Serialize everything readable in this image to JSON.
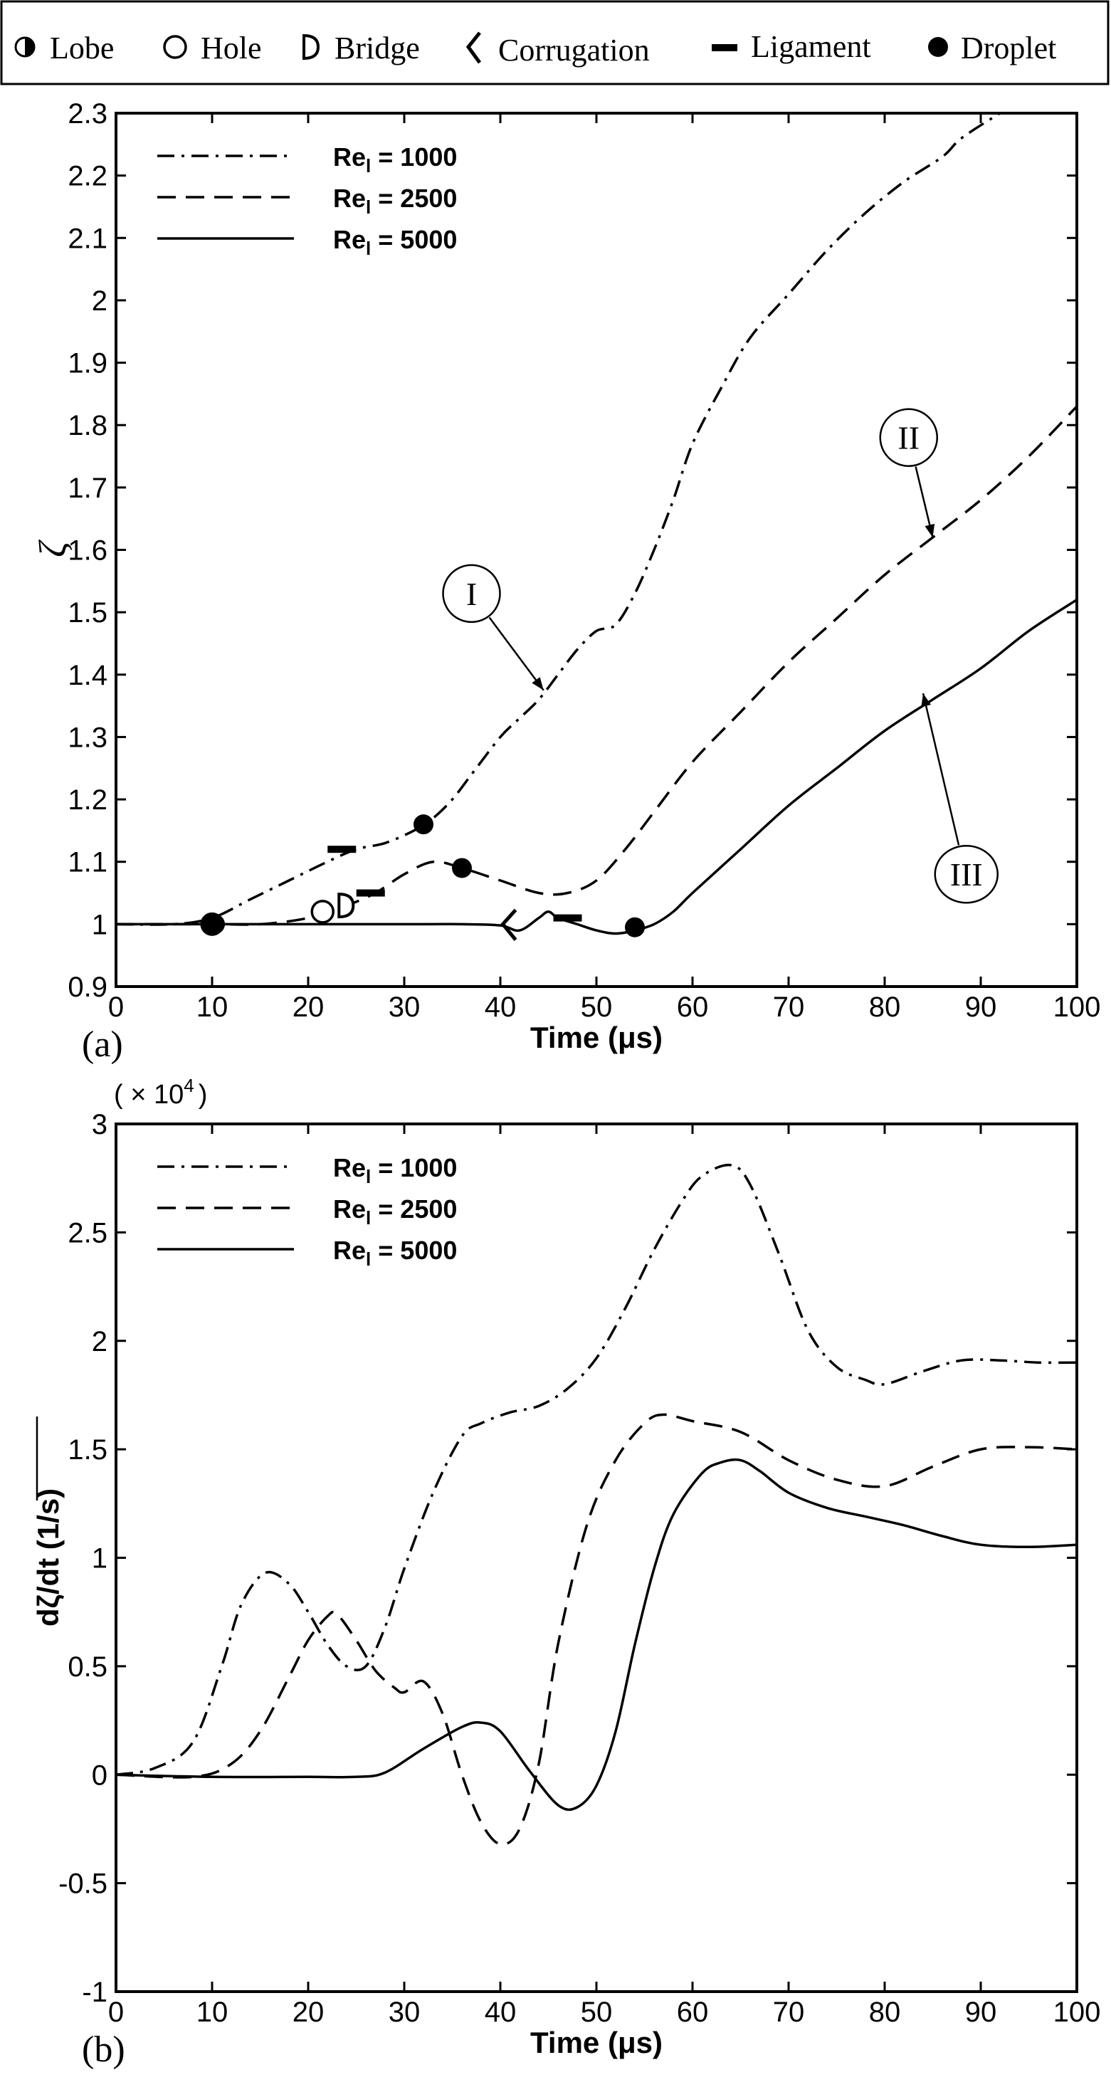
{
  "legend_top": {
    "items": [
      {
        "label": "Lobe",
        "icon": "half-filled-circle-icon"
      },
      {
        "label": "Hole",
        "icon": "open-circle-icon"
      },
      {
        "label": "Bridge",
        "icon": "d-shape-icon"
      },
      {
        "label": "Corrugation",
        "icon": "zigzag-icon"
      },
      {
        "label": "Ligament",
        "icon": "bar-icon"
      },
      {
        "label": "Droplet",
        "icon": "filled-circle-icon"
      }
    ]
  },
  "chart_data": [
    {
      "type": "line",
      "panel_label": "(a)",
      "title": "",
      "xlabel": "Time (μs)",
      "ylabel": "ζ",
      "xlim": [
        0,
        100
      ],
      "ylim": [
        0.9,
        2.3
      ],
      "xticks": [
        "0",
        "10",
        "20",
        "30",
        "40",
        "50",
        "60",
        "70",
        "80",
        "90",
        "100"
      ],
      "yticks": [
        "0.9",
        "1",
        "1.1",
        "1.2",
        "1.3",
        "1.4",
        "1.5",
        "1.6",
        "1.7",
        "1.8",
        "1.9",
        "2",
        "2.1",
        "2.2",
        "2.3"
      ],
      "legend": {
        "position": "top-left",
        "entries": [
          {
            "base": "Re",
            "sub": "l",
            "rest": " = 1000"
          },
          {
            "base": "Re",
            "sub": "l",
            "rest": " = 2500"
          },
          {
            "base": "Re",
            "sub": "l",
            "rest": " = 5000"
          }
        ]
      },
      "series": [
        {
          "name": "Rel = 1000",
          "style": "dashdot",
          "points": [
            [
              0,
              1
            ],
            [
              6,
              1.0
            ],
            [
              10,
              1.01
            ],
            [
              14,
              1.04
            ],
            [
              18,
              1.07
            ],
            [
              22,
              1.1
            ],
            [
              25,
              1.12
            ],
            [
              28,
              1.13
            ],
            [
              31,
              1.15
            ],
            [
              33,
              1.17
            ],
            [
              35,
              1.2
            ],
            [
              37,
              1.24
            ],
            [
              40,
              1.3
            ],
            [
              42,
              1.33
            ],
            [
              44,
              1.36
            ],
            [
              46,
              1.4
            ],
            [
              48,
              1.44
            ],
            [
              50,
              1.47
            ],
            [
              52,
              1.48
            ],
            [
              54,
              1.53
            ],
            [
              56,
              1.6
            ],
            [
              58,
              1.68
            ],
            [
              60,
              1.77
            ],
            [
              63,
              1.86
            ],
            [
              66,
              1.94
            ],
            [
              70,
              2.01
            ],
            [
              74,
              2.08
            ],
            [
              78,
              2.14
            ],
            [
              82,
              2.19
            ],
            [
              86,
              2.23
            ],
            [
              88,
              2.26
            ],
            [
              92,
              2.3
            ]
          ]
        },
        {
          "name": "Rel = 2500",
          "style": "dashed",
          "points": [
            [
              0,
              1
            ],
            [
              10,
              1.0
            ],
            [
              15,
              1.0
            ],
            [
              20,
              1.01
            ],
            [
              24,
              1.03
            ],
            [
              27,
              1.05
            ],
            [
              30,
              1.08
            ],
            [
              33,
              1.1
            ],
            [
              36,
              1.09
            ],
            [
              40,
              1.07
            ],
            [
              44,
              1.05
            ],
            [
              47,
              1.05
            ],
            [
              50,
              1.07
            ],
            [
              53,
              1.12
            ],
            [
              56,
              1.18
            ],
            [
              60,
              1.26
            ],
            [
              65,
              1.34
            ],
            [
              70,
              1.42
            ],
            [
              75,
              1.49
            ],
            [
              80,
              1.56
            ],
            [
              85,
              1.62
            ],
            [
              90,
              1.68
            ],
            [
              95,
              1.75
            ],
            [
              100,
              1.83
            ]
          ]
        },
        {
          "name": "Rel = 5000",
          "style": "solid",
          "points": [
            [
              0,
              1
            ],
            [
              10,
              1.0
            ],
            [
              20,
              1.0
            ],
            [
              30,
              1.0
            ],
            [
              36,
              1.0
            ],
            [
              40,
              0.998
            ],
            [
              42,
              0.99
            ],
            [
              44,
              1.01
            ],
            [
              45,
              1.02
            ],
            [
              46,
              1.01
            ],
            [
              48,
              1.0
            ],
            [
              50,
              0.99
            ],
            [
              52,
              0.985
            ],
            [
              54,
              0.99
            ],
            [
              56,
              1.0
            ],
            [
              58,
              1.02
            ],
            [
              60,
              1.05
            ],
            [
              65,
              1.12
            ],
            [
              70,
              1.19
            ],
            [
              75,
              1.25
            ],
            [
              80,
              1.31
            ],
            [
              85,
              1.36
            ],
            [
              90,
              1.41
            ],
            [
              95,
              1.47
            ],
            [
              100,
              1.52
            ]
          ]
        }
      ],
      "markers": [
        {
          "type": "lobe",
          "x": 10,
          "y": 1.0
        },
        {
          "type": "droplet",
          "x": 10.3,
          "y": 1.0
        },
        {
          "type": "hole",
          "x": 21.5,
          "y": 1.02
        },
        {
          "type": "bridge",
          "x": 23.8,
          "y": 1.03
        },
        {
          "type": "ligament",
          "x": 23.5,
          "y": 1.12
        },
        {
          "type": "ligament",
          "x": 26.5,
          "y": 1.05
        },
        {
          "type": "droplet",
          "x": 32,
          "y": 1.16
        },
        {
          "type": "droplet",
          "x": 36,
          "y": 1.09
        },
        {
          "type": "corrugation",
          "x": 41,
          "y": 1.0
        },
        {
          "type": "ligament",
          "x": 47,
          "y": 1.01
        },
        {
          "type": "droplet",
          "x": 54,
          "y": 0.995
        }
      ],
      "annotations": [
        {
          "label": "I",
          "cx": 37,
          "cy": 1.53,
          "tx": 44.5,
          "ty": 1.375
        },
        {
          "label": "II",
          "cx": 82.5,
          "cy": 1.78,
          "tx": 85,
          "ty": 1.62
        },
        {
          "label": "III",
          "cx": 88.5,
          "cy": 1.08,
          "tx": 84,
          "ty": 1.37
        }
      ]
    },
    {
      "type": "line",
      "panel_label": "(b)",
      "title": "",
      "xlabel": "Time (μs)",
      "ylabel": "dζ/dt (1/s)",
      "scale_note": "( × 10",
      "scale_exp": "4",
      "scale_close": ")",
      "xlim": [
        0,
        100
      ],
      "ylim": [
        -1,
        3
      ],
      "xticks": [
        "0",
        "10",
        "20",
        "30",
        "40",
        "50",
        "60",
        "70",
        "80",
        "90",
        "100"
      ],
      "yticks": [
        "-1",
        "-0.5",
        "0",
        "0.5",
        "1",
        "1.5",
        "2",
        "2.5",
        "3"
      ],
      "legend": {
        "position": "top-left",
        "entries": [
          {
            "base": "Re",
            "sub": "l",
            "rest": " = 1000"
          },
          {
            "base": "Re",
            "sub": "l",
            "rest": " = 2500"
          },
          {
            "base": "Re",
            "sub": "l",
            "rest": " = 5000"
          }
        ]
      },
      "series": [
        {
          "name": "Rel = 1000",
          "style": "dashdot",
          "points": [
            [
              0,
              0
            ],
            [
              4,
              0.03
            ],
            [
              8,
              0.15
            ],
            [
              11,
              0.5
            ],
            [
              13,
              0.78
            ],
            [
              15.5,
              0.93
            ],
            [
              18,
              0.88
            ],
            [
              20,
              0.75
            ],
            [
              22,
              0.6
            ],
            [
              24,
              0.5
            ],
            [
              26,
              0.5
            ],
            [
              28,
              0.68
            ],
            [
              30,
              0.95
            ],
            [
              33,
              1.3
            ],
            [
              36,
              1.56
            ],
            [
              38,
              1.62
            ],
            [
              41,
              1.67
            ],
            [
              44,
              1.7
            ],
            [
              47,
              1.78
            ],
            [
              50,
              1.92
            ],
            [
              53,
              2.15
            ],
            [
              56,
              2.42
            ],
            [
              59,
              2.65
            ],
            [
              61,
              2.76
            ],
            [
              64,
              2.81
            ],
            [
              66,
              2.72
            ],
            [
              69,
              2.4
            ],
            [
              72,
              2.05
            ],
            [
              75,
              1.88
            ],
            [
              78,
              1.82
            ],
            [
              80,
              1.8
            ],
            [
              84,
              1.86
            ],
            [
              88,
              1.91
            ],
            [
              92,
              1.91
            ],
            [
              96,
              1.9
            ],
            [
              100,
              1.9
            ]
          ]
        },
        {
          "name": "Rel = 2500",
          "style": "dashed",
          "points": [
            [
              0,
              0
            ],
            [
              8,
              -0.01
            ],
            [
              12,
              0.05
            ],
            [
              15,
              0.2
            ],
            [
              18,
              0.45
            ],
            [
              20,
              0.62
            ],
            [
              22,
              0.73
            ],
            [
              23,
              0.74
            ],
            [
              25,
              0.62
            ],
            [
              27,
              0.48
            ],
            [
              29,
              0.4
            ],
            [
              30,
              0.38
            ],
            [
              32,
              0.43
            ],
            [
              34,
              0.28
            ],
            [
              36,
              0.0
            ],
            [
              38,
              -0.22
            ],
            [
              40,
              -0.32
            ],
            [
              42,
              -0.25
            ],
            [
              44,
              0.05
            ],
            [
              46,
              0.6
            ],
            [
              49,
              1.15
            ],
            [
              52,
              1.45
            ],
            [
              55,
              1.62
            ],
            [
              57,
              1.66
            ],
            [
              60,
              1.63
            ],
            [
              65,
              1.58
            ],
            [
              70,
              1.45
            ],
            [
              75,
              1.36
            ],
            [
              80,
              1.33
            ],
            [
              85,
              1.42
            ],
            [
              90,
              1.5
            ],
            [
              95,
              1.51
            ],
            [
              100,
              1.5
            ]
          ]
        },
        {
          "name": "Rel = 5000",
          "style": "solid",
          "points": [
            [
              0,
              0
            ],
            [
              10,
              -0.01
            ],
            [
              20,
              -0.01
            ],
            [
              25,
              -0.01
            ],
            [
              28,
              0.01
            ],
            [
              32,
              0.12
            ],
            [
              36,
              0.22
            ],
            [
              38,
              0.24
            ],
            [
              40,
              0.2
            ],
            [
              43,
              0.02
            ],
            [
              46,
              -0.14
            ],
            [
              48,
              -0.15
            ],
            [
              50,
              -0.05
            ],
            [
              52,
              0.2
            ],
            [
              54,
              0.6
            ],
            [
              56,
              0.95
            ],
            [
              58,
              1.2
            ],
            [
              61,
              1.39
            ],
            [
              63,
              1.44
            ],
            [
              65,
              1.45
            ],
            [
              67,
              1.4
            ],
            [
              70,
              1.3
            ],
            [
              74,
              1.23
            ],
            [
              78,
              1.19
            ],
            [
              82,
              1.15
            ],
            [
              86,
              1.1
            ],
            [
              90,
              1.06
            ],
            [
              95,
              1.05
            ],
            [
              100,
              1.06
            ]
          ]
        }
      ]
    }
  ]
}
